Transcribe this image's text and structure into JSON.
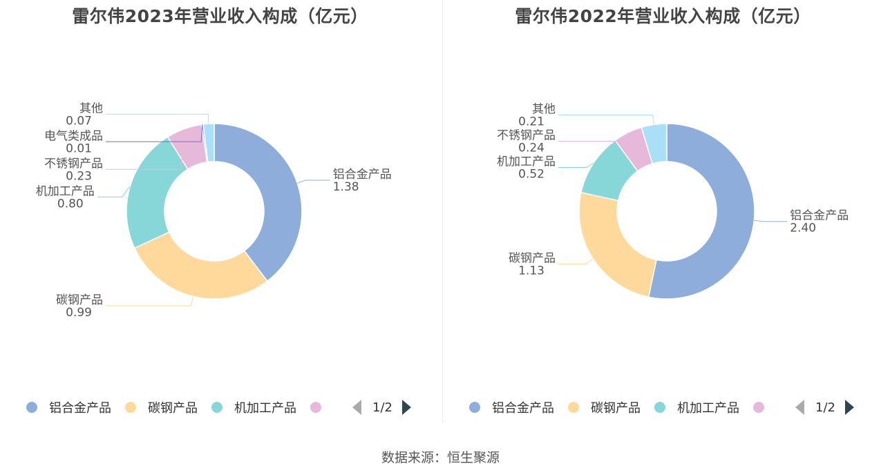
{
  "chart_data": [
    {
      "type": "pie",
      "title": "雷尔伟2023年营业收入构成（亿元）",
      "labels": [
        "铝合金产品",
        "碳钢产品",
        "机加工产品",
        "不锈钢产品",
        "电气类成品",
        "其他"
      ],
      "values": [
        1.38,
        0.99,
        0.8,
        0.23,
        0.01,
        0.07
      ],
      "value_labels": [
        "1.38",
        "0.99",
        "0.80",
        "0.23",
        "0.01",
        "0.07"
      ],
      "colors": [
        "#8eaddb",
        "#fed99b",
        "#87d7d8",
        "#e6b9da",
        "#6f6fe0",
        "#a9e0f8"
      ],
      "legend": {
        "items": [
          "铝合金产品",
          "碳钢产品",
          "机加工产品"
        ],
        "page": "1/2"
      }
    },
    {
      "type": "pie",
      "title": "雷尔伟2022年营业收入构成（亿元）",
      "labels": [
        "铝合金产品",
        "碳钢产品",
        "机加工产品",
        "不锈钢产品",
        "其他"
      ],
      "values": [
        2.4,
        1.13,
        0.52,
        0.24,
        0.21
      ],
      "value_labels": [
        "2.40",
        "1.13",
        "0.52",
        "0.24",
        "0.21"
      ],
      "colors": [
        "#8eaddb",
        "#fed99b",
        "#87d7d8",
        "#e6b9da",
        "#a9e0f8"
      ],
      "legend": {
        "items": [
          "铝合金产品",
          "碳钢产品",
          "机加工产品"
        ],
        "page": "1/2"
      }
    }
  ],
  "footer": {
    "source": "数据来源：恒生聚源"
  }
}
